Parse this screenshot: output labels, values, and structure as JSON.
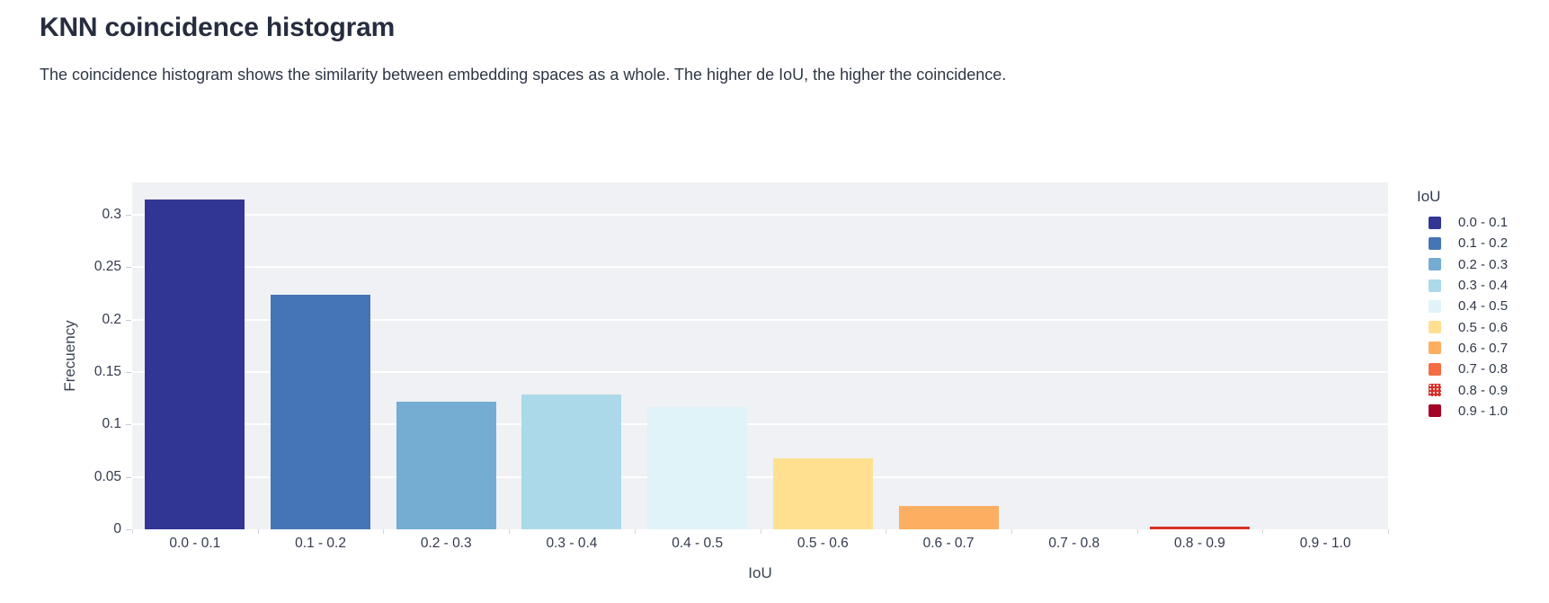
{
  "page": {
    "title": "KNN coincidence histogram",
    "subtitle": "The coincidence histogram shows the similarity between embedding spaces as a whole. The higher de IoU, the higher the coincidence."
  },
  "chart_data": {
    "type": "bar",
    "title": "KNN coincidence histogram",
    "xlabel": "IoU",
    "ylabel": "Frecuency",
    "categories": [
      "0.0 - 0.1",
      "0.1 - 0.2",
      "0.2 - 0.3",
      "0.3 - 0.4",
      "0.4 - 0.5",
      "0.5 - 0.6",
      "0.6 - 0.7",
      "0.7 - 0.8",
      "0.8 - 0.9",
      "0.9 - 1.0"
    ],
    "values": [
      0.315,
      0.224,
      0.122,
      0.129,
      0.117,
      0.068,
      0.022,
      0.0,
      0.003,
      0.0
    ],
    "bar_colors": [
      "#313695",
      "#4575b4",
      "#74add1",
      "#abd9e9",
      "#e0f3f8",
      "#fee090",
      "#fdae61",
      "#f46d43",
      "#d73027",
      "#a50026"
    ],
    "y_ticks": [
      "0",
      "0.05",
      "0.1",
      "0.15",
      "0.2",
      "0.25",
      "0.3"
    ],
    "ylim": [
      0,
      0.331
    ],
    "grid": true,
    "plot_bg": "#eff1f5",
    "grid_color": "#ffffff",
    "legend": {
      "title": "IoU",
      "position": "right",
      "items": [
        {
          "label": "0.0 - 0.1",
          "color": "#313695",
          "decal": false
        },
        {
          "label": "0.1 - 0.2",
          "color": "#4575b4",
          "decal": false
        },
        {
          "label": "0.2 - 0.3",
          "color": "#74add1",
          "decal": false
        },
        {
          "label": "0.3 - 0.4",
          "color": "#abd9e9",
          "decal": false
        },
        {
          "label": "0.4 - 0.5",
          "color": "#e0f3f8",
          "decal": false
        },
        {
          "label": "0.5 - 0.6",
          "color": "#fee090",
          "decal": false
        },
        {
          "label": "0.6 - 0.7",
          "color": "#fdae61",
          "decal": false
        },
        {
          "label": "0.7 - 0.8",
          "color": "#f46d43",
          "decal": false
        },
        {
          "label": "0.8 - 0.9",
          "color": "#d73027",
          "decal": true
        },
        {
          "label": "0.9 - 1.0",
          "color": "#a50026",
          "decal": false
        }
      ]
    }
  }
}
